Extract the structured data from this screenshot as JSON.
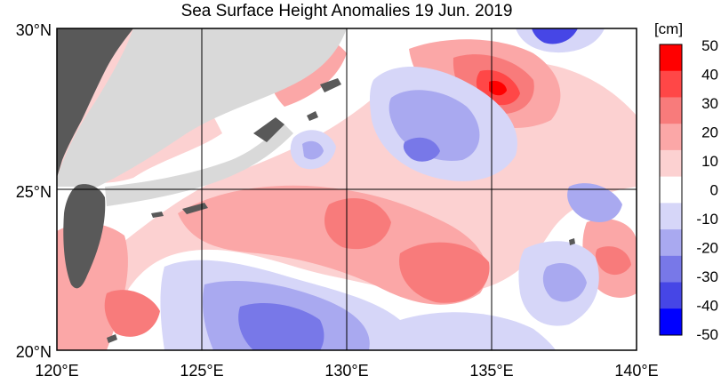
{
  "title": "Sea Surface Height Anomalies  19 Jun. 2019",
  "map": {
    "x_ticks": [
      "120°E",
      "125°E",
      "130°E",
      "135°E",
      "140°E"
    ],
    "y_ticks": [
      "30°N",
      "25°N",
      "20°N"
    ],
    "lon_range": [
      120,
      140
    ],
    "lat_range": [
      20,
      30
    ],
    "land_color": "#d9d9d9",
    "taiwan_color": "#595959"
  },
  "colorbar": {
    "unit": "[cm]",
    "labels": [
      "50",
      "40",
      "30",
      "20",
      "10",
      "0",
      "-10",
      "-20",
      "-30",
      "-40",
      "-50"
    ],
    "colors": [
      "#ff0000",
      "#ff4747",
      "#f87b7b",
      "#fba7a7",
      "#fcd1d1",
      "#ffffff",
      "#d6d6f8",
      "#a9a9f0",
      "#7878e8",
      "#4646e6",
      "#0000ff"
    ]
  }
}
